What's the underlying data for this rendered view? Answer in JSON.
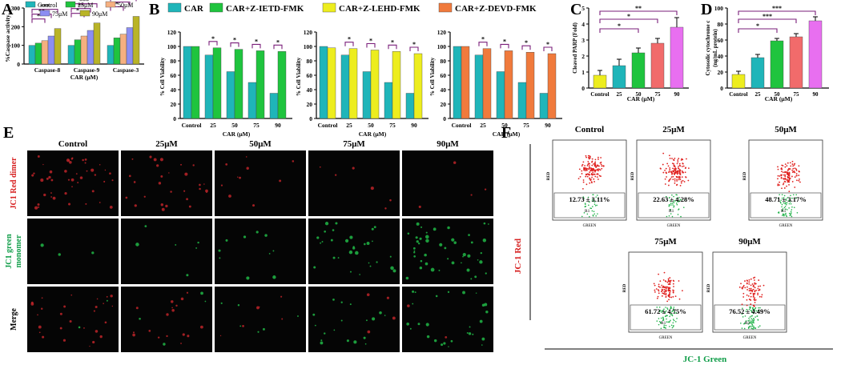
{
  "colors": {
    "teal": "#1fb5b9",
    "green": "#1fc43e",
    "peach": "#f5b080",
    "lavender": "#8c8ef2",
    "olive": "#b9b427",
    "yellow": "#eded1e",
    "orange": "#f07a3c",
    "red": "#f16b6b",
    "magenta": "#e86ff0",
    "sig": "#7a1e7a"
  },
  "panels": {
    "A": "A",
    "B": "B",
    "C": "C",
    "D": "D",
    "E": "E",
    "F": "F"
  },
  "chart_data": [
    {
      "id": "A",
      "type": "bar",
      "ylabel": "%Caspase activity",
      "ylim": [
        0,
        300
      ],
      "yticks": [
        "0",
        "100",
        "200",
        "300"
      ],
      "categories": [
        "Caspase-8",
        "Caspase-9",
        "Caspase-3"
      ],
      "xlabel": "CAR (μM)",
      "legend": [
        "Control",
        "25μM",
        "50μM",
        "75μM",
        "90μM"
      ],
      "series": [
        {
          "name": "Control",
          "values": [
            100,
            100,
            100
          ]
        },
        {
          "name": "25μM",
          "values": [
            112,
            130,
            140
          ]
        },
        {
          "name": "50μM",
          "values": [
            125,
            150,
            160
          ]
        },
        {
          "name": "75μM",
          "values": [
            150,
            180,
            195
          ]
        },
        {
          "name": "90μM",
          "values": [
            190,
            220,
            255
          ]
        }
      ],
      "sig": [
        "*",
        "**",
        "***"
      ]
    },
    {
      "id": "B1",
      "type": "bar",
      "legend": "CAR",
      "ylabel": "% Cell Viability",
      "ylim": [
        0,
        120
      ],
      "yticks": [
        "0",
        "20",
        "40",
        "60",
        "80",
        "100",
        "120"
      ],
      "categories": [
        "Control",
        "25",
        "50",
        "75",
        "90"
      ],
      "xlabel": "CAR (μM)",
      "series": [
        {
          "name": "CAR",
          "values": [
            100,
            88,
            65,
            50,
            35
          ]
        },
        {
          "name": "CAR+Z-IETD-FMK",
          "values": [
            100,
            98,
            96,
            94,
            93
          ]
        }
      ],
      "sig": "*"
    },
    {
      "id": "B2",
      "type": "bar",
      "legend": "CAR+Z-IETD-FMK",
      "ylabel": "% Cell Viability",
      "ylim": [
        0,
        120
      ],
      "yticks": [
        "0",
        "20",
        "40",
        "60",
        "80",
        "100",
        "120"
      ],
      "categories": [
        "Control",
        "25",
        "50",
        "75",
        "90"
      ],
      "xlabel": "CAR (μM)",
      "series": [
        {
          "name": "CAR",
          "values": [
            100,
            88,
            65,
            50,
            35
          ]
        },
        {
          "name": "CAR+Z-LEHD-FMK",
          "values": [
            98,
            97,
            95,
            93,
            90
          ]
        }
      ],
      "sig": "*"
    },
    {
      "id": "B3",
      "type": "bar",
      "legend": "CAR+Z-LEHD-FMK",
      "legend2": "CAR+Z-DEVD-FMK",
      "ylabel": "% Cell Viability",
      "ylim": [
        0,
        120
      ],
      "yticks": [
        "0",
        "20",
        "40",
        "60",
        "80",
        "100",
        "120"
      ],
      "categories": [
        "Control",
        "25",
        "50",
        "75",
        "90"
      ],
      "xlabel": "CAR (μM)",
      "series": [
        {
          "name": "CAR",
          "values": [
            100,
            88,
            65,
            50,
            35
          ]
        },
        {
          "name": "CAR+Z-DEVD-FMK",
          "values": [
            100,
            97,
            94,
            92,
            90
          ]
        }
      ],
      "sig": "*"
    },
    {
      "id": "C",
      "type": "bar",
      "ylabel": "Cleaved PARP (Fold)",
      "ylim": [
        0,
        5
      ],
      "yticks": [
        "0",
        "1",
        "2",
        "3",
        "4",
        "5"
      ],
      "categories": [
        "Control",
        "25",
        "50",
        "75",
        "90"
      ],
      "xlabel": "CAR (μM)",
      "values": [
        0.8,
        1.4,
        2.2,
        2.8,
        3.8
      ],
      "errors": [
        0.3,
        0.4,
        0.3,
        0.3,
        0.6
      ],
      "sig": [
        "*",
        "*",
        "**"
      ]
    },
    {
      "id": "D",
      "type": "bar",
      "ylabel": "Cytosolic cytochrome c",
      "ylabel2": "(ng/mL protein)",
      "ylim": [
        0,
        100
      ],
      "yticks": [
        "0",
        "20",
        "40",
        "60",
        "80",
        "100"
      ],
      "categories": [
        "Control",
        "25",
        "50",
        "75",
        "90"
      ],
      "xlabel": "CAR (μM)",
      "values": [
        17,
        38,
        59,
        64,
        84
      ],
      "errors": [
        4,
        4,
        3,
        4,
        5
      ],
      "sig": [
        "*",
        "***",
        "***"
      ]
    },
    {
      "id": "F",
      "type": "scatter",
      "ylabel": "JC-1 Red",
      "xlabel": "JC-1 Green",
      "axis_x": "GREEN",
      "axis_y": "RED",
      "gate": "R1",
      "plots": [
        {
          "title": "Control",
          "value": "12.73 ± 3.11%"
        },
        {
          "title": "25μM",
          "value": "22.63 ± 4.28%"
        },
        {
          "title": "50μM",
          "value": "48.71 ± 3.17%"
        },
        {
          "title": "75μM",
          "value": "61.72 ± 4.75%"
        },
        {
          "title": "90μM",
          "value": "76.52 ± 4.49%"
        }
      ]
    }
  ],
  "micrographs": {
    "columns": [
      "Control",
      "25μM",
      "50μM",
      "75μM",
      "90μM"
    ],
    "rows": [
      "JC1 Red dimer",
      "JC1 green monomer",
      "Merge"
    ]
  }
}
